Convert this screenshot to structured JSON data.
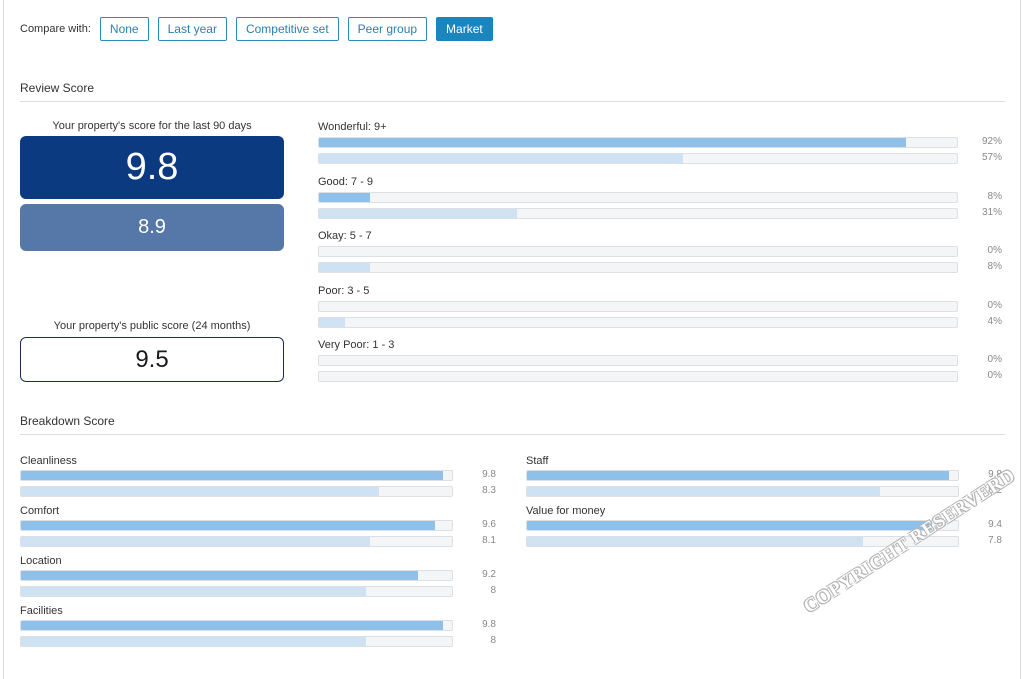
{
  "compare": {
    "label": "Compare with:",
    "buttons": [
      {
        "label": "None",
        "active": false
      },
      {
        "label": "Last year",
        "active": false
      },
      {
        "label": "Competitive set",
        "active": false
      },
      {
        "label": "Peer group",
        "active": false
      },
      {
        "label": "Market",
        "active": true
      }
    ]
  },
  "review": {
    "title": "Review Score",
    "recent_caption": "Your property's score for the last 90 days",
    "recent_score": "9.8",
    "comparison_score": "8.9",
    "public_caption": "Your property's public score (24 months)",
    "public_score": "9.5",
    "distribution": [
      {
        "label": "Wonderful: 9+",
        "primary_pct": 92,
        "secondary_pct": 57,
        "primary_text": "92%",
        "secondary_text": "57%"
      },
      {
        "label": "Good: 7 - 9",
        "primary_pct": 8,
        "secondary_pct": 31,
        "primary_text": "8%",
        "secondary_text": "31%"
      },
      {
        "label": "Okay: 5 - 7",
        "primary_pct": 0,
        "secondary_pct": 8,
        "primary_text": "0%",
        "secondary_text": "8%"
      },
      {
        "label": "Poor: 3 - 5",
        "primary_pct": 0,
        "secondary_pct": 4,
        "primary_text": "0%",
        "secondary_text": "4%"
      },
      {
        "label": "Very Poor: 1 - 3",
        "primary_pct": 0,
        "secondary_pct": 0,
        "primary_text": "0%",
        "secondary_text": "0%"
      }
    ]
  },
  "breakdown": {
    "title": "Breakdown Score",
    "scale_max": 10,
    "left": [
      {
        "label": "Cleanliness",
        "primary": 9.8,
        "secondary": 8.3,
        "primary_text": "9.8",
        "secondary_text": "8.3"
      },
      {
        "label": "Comfort",
        "primary": 9.6,
        "secondary": 8.1,
        "primary_text": "9.6",
        "secondary_text": "8.1"
      },
      {
        "label": "Location",
        "primary": 9.2,
        "secondary": 8,
        "primary_text": "9.2",
        "secondary_text": "8"
      },
      {
        "label": "Facilities",
        "primary": 9.8,
        "secondary": 8,
        "primary_text": "9.8",
        "secondary_text": "8"
      }
    ],
    "right": [
      {
        "label": "Staff",
        "primary": 9.8,
        "secondary": 8.2,
        "primary_text": "9.8",
        "secondary_text": "8.2"
      },
      {
        "label": "Value for money",
        "primary": 9.4,
        "secondary": 7.8,
        "primary_text": "9.4",
        "secondary_text": "7.8"
      }
    ]
  },
  "watermark": "COPYRIGHT RESERVERD",
  "colors": {
    "accent": "#1a86bd",
    "primary_bar": "#8fc0ea",
    "secondary_bar": "#cfe2f3",
    "score_dark": "#0c3a80",
    "score_mid": "#5678a8"
  }
}
